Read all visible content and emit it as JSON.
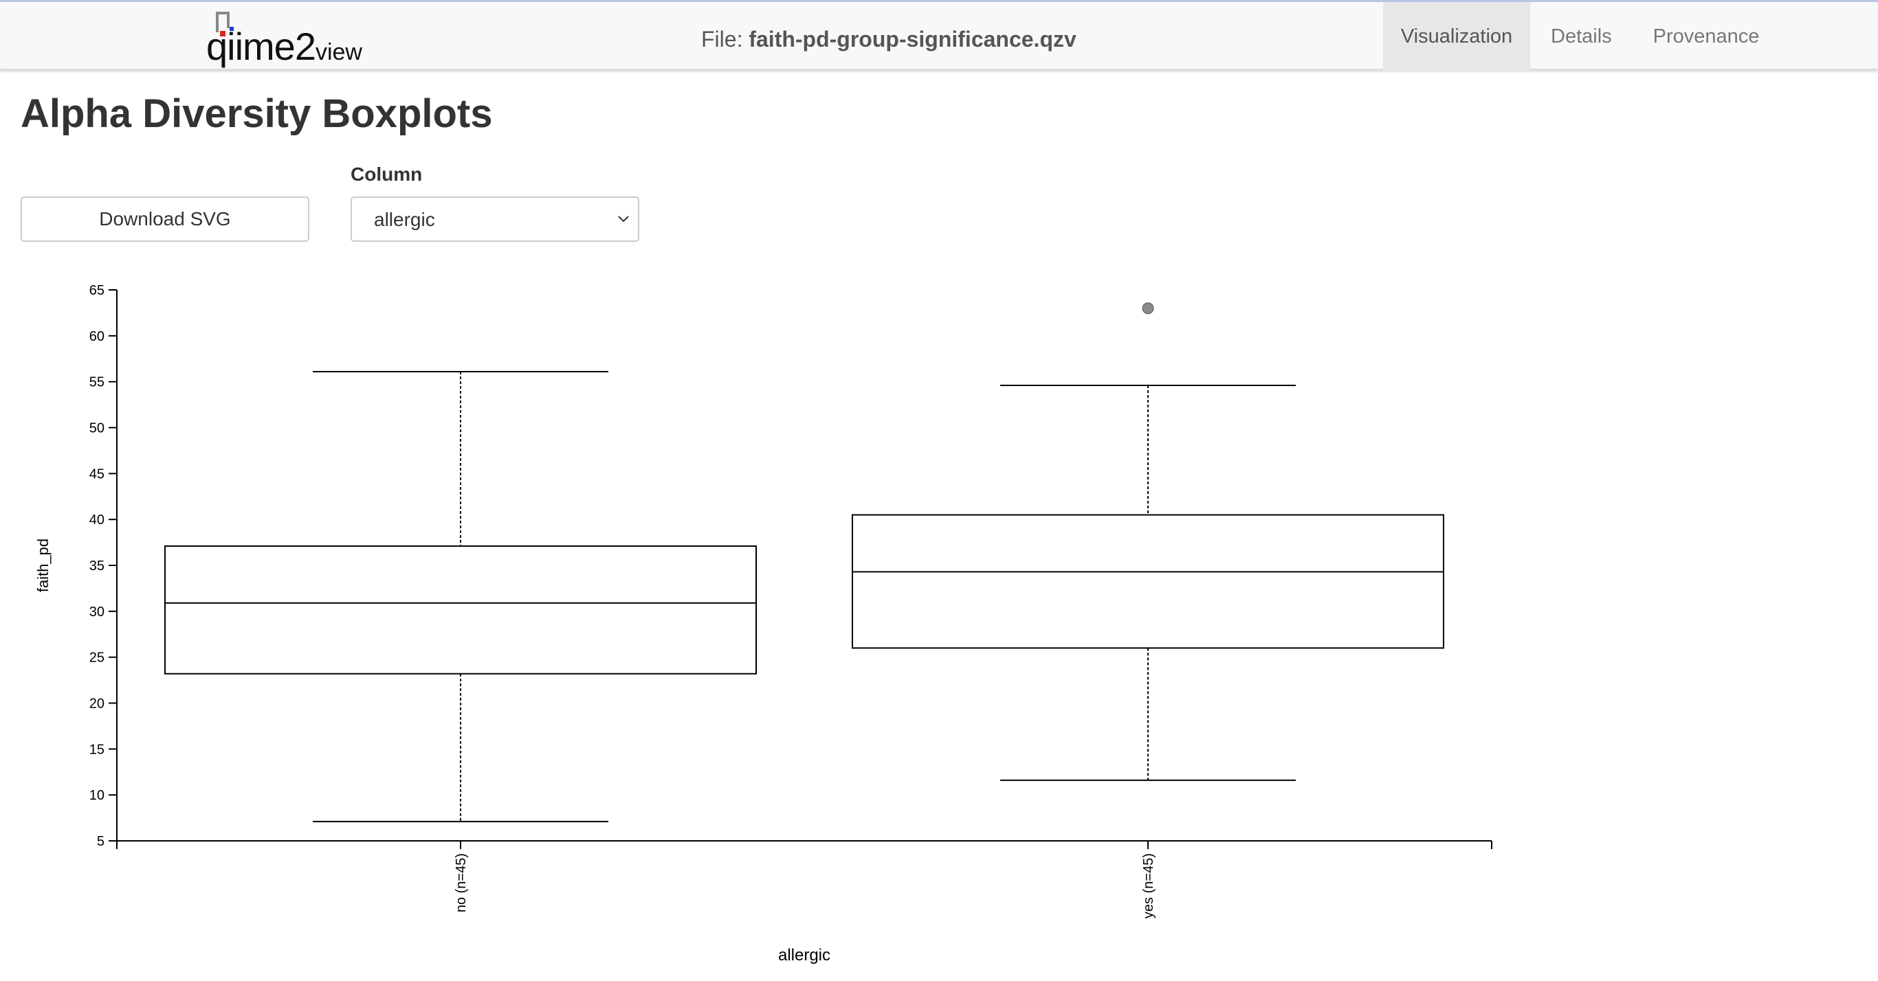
{
  "header": {
    "logo": {
      "main": "qiime2",
      "suffix": "view"
    },
    "file_prefix": "File: ",
    "file_name": "faith-pd-group-significance.qzv",
    "tabs": [
      {
        "label": "Visualization",
        "active": true
      },
      {
        "label": "Details",
        "active": false
      },
      {
        "label": "Provenance",
        "active": false
      }
    ]
  },
  "main": {
    "title": "Alpha Diversity Boxplots",
    "download_label": "Download SVG",
    "column_label": "Column",
    "column_value": "allergic"
  },
  "chart_data": {
    "type": "box",
    "xlabel": "allergic",
    "ylabel": "faith_pd",
    "ylim": [
      5,
      65
    ],
    "yticks": [
      "5",
      "10",
      "15",
      "20",
      "25",
      "30",
      "35",
      "40",
      "45",
      "50",
      "55",
      "60",
      "65"
    ],
    "categories": [
      "no (n=45)",
      "yes (n=45)"
    ],
    "boxes": [
      {
        "label": "no (n=45)",
        "whisker_low": 7.1,
        "q1": 23.2,
        "median": 30.9,
        "q3": 37.1,
        "whisker_high": 56.1,
        "outliers": []
      },
      {
        "label": "yes (n=45)",
        "whisker_low": 11.6,
        "q1": 26.0,
        "median": 34.3,
        "q3": 40.5,
        "whisker_high": 54.6,
        "outliers": [
          63.0
        ]
      }
    ]
  }
}
